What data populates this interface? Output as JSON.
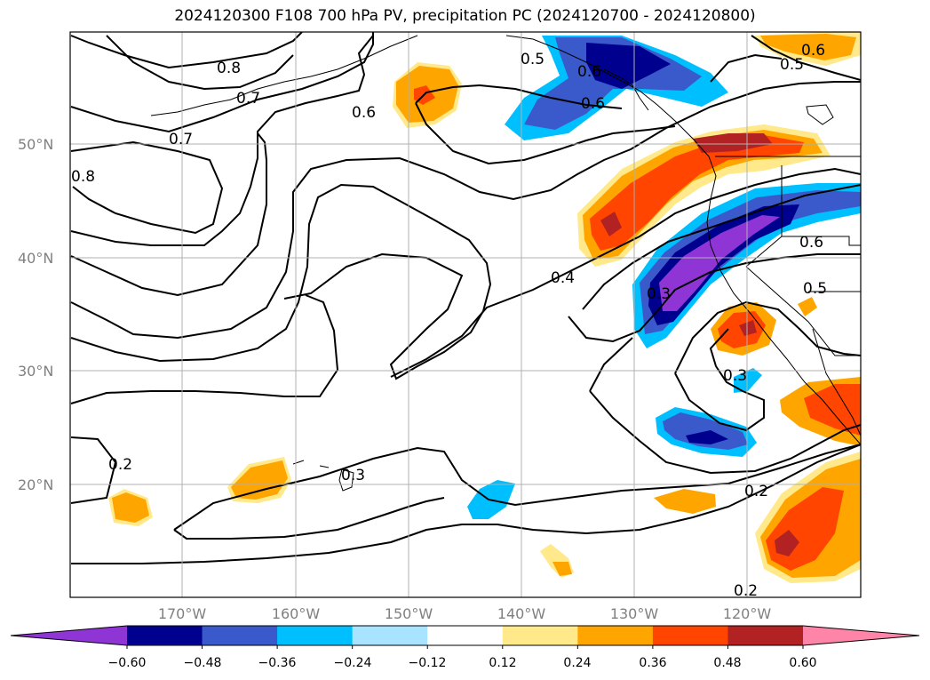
{
  "title": "2024120300 F108 700 hPa PV, precipitation PC (2024120700 - 2024120800)",
  "map": {
    "lat_labels": [
      "50°N",
      "40°N",
      "30°N",
      "20°N"
    ],
    "lon_labels": [
      "170°W",
      "160°W",
      "150°W",
      "140°W",
      "130°W",
      "120°W"
    ],
    "contour_labels": [
      "0.8",
      "0.7",
      "0.7",
      "0.6",
      "0.5",
      "0.6",
      "0.6",
      "0.5",
      "0.6",
      "0.4",
      "0.3",
      "0.3",
      "0.2",
      "0.3",
      "0.2",
      "0.6",
      "0.5",
      "0.2",
      "0.8"
    ]
  },
  "colorbar": {
    "ticks": [
      "−0.60",
      "−0.48",
      "−0.36",
      "−0.24",
      "−0.12",
      "0.12",
      "0.24",
      "0.36",
      "0.48",
      "0.60"
    ],
    "colors": [
      "#8f35d6",
      "#00008f",
      "#3a5acc",
      "#00bfff",
      "#a8e4ff",
      "#ffffff",
      "#ffe98a",
      "#ffa500",
      "#ff4500",
      "#b22222",
      "#ff85a8"
    ]
  }
}
